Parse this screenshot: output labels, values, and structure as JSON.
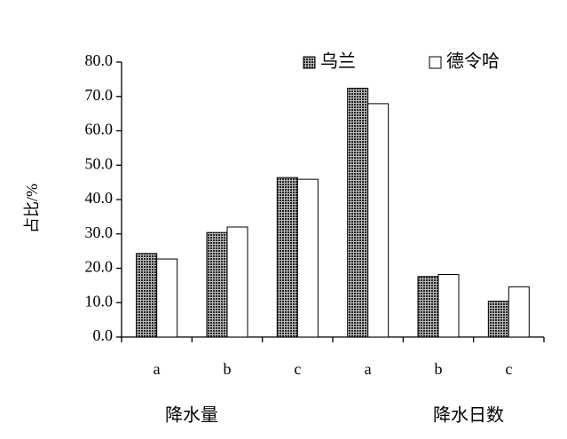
{
  "chart_data": {
    "type": "bar",
    "y_label": "占比/%",
    "categories": [
      "a",
      "b",
      "c",
      "a",
      "b",
      "c"
    ],
    "group_labels": [
      "降水量",
      "降水日数"
    ],
    "series": [
      {
        "name": "乌兰",
        "color": "#555555",
        "pattern": "dots",
        "values": [
          24.3,
          30.4,
          46.4,
          72.4,
          17.6,
          10.4
        ]
      },
      {
        "name": "德令哈",
        "color": "#ffffff",
        "values": [
          22.7,
          32.0,
          45.9,
          67.9,
          18.2,
          14.6
        ]
      }
    ],
    "ylim": [
      0,
      80
    ],
    "yticks": [
      {
        "value": 0,
        "label": "0.0"
      },
      {
        "value": 10,
        "label": "10.0"
      },
      {
        "value": 20,
        "label": "20.0"
      },
      {
        "value": 30,
        "label": "30.0"
      },
      {
        "value": 40,
        "label": "40.0"
      },
      {
        "value": 50,
        "label": "50.0"
      },
      {
        "value": 60,
        "label": "60.0"
      },
      {
        "value": 70,
        "label": "70.0"
      },
      {
        "value": 80,
        "label": "80.0"
      }
    ],
    "grid": false,
    "legend": "top-right"
  }
}
